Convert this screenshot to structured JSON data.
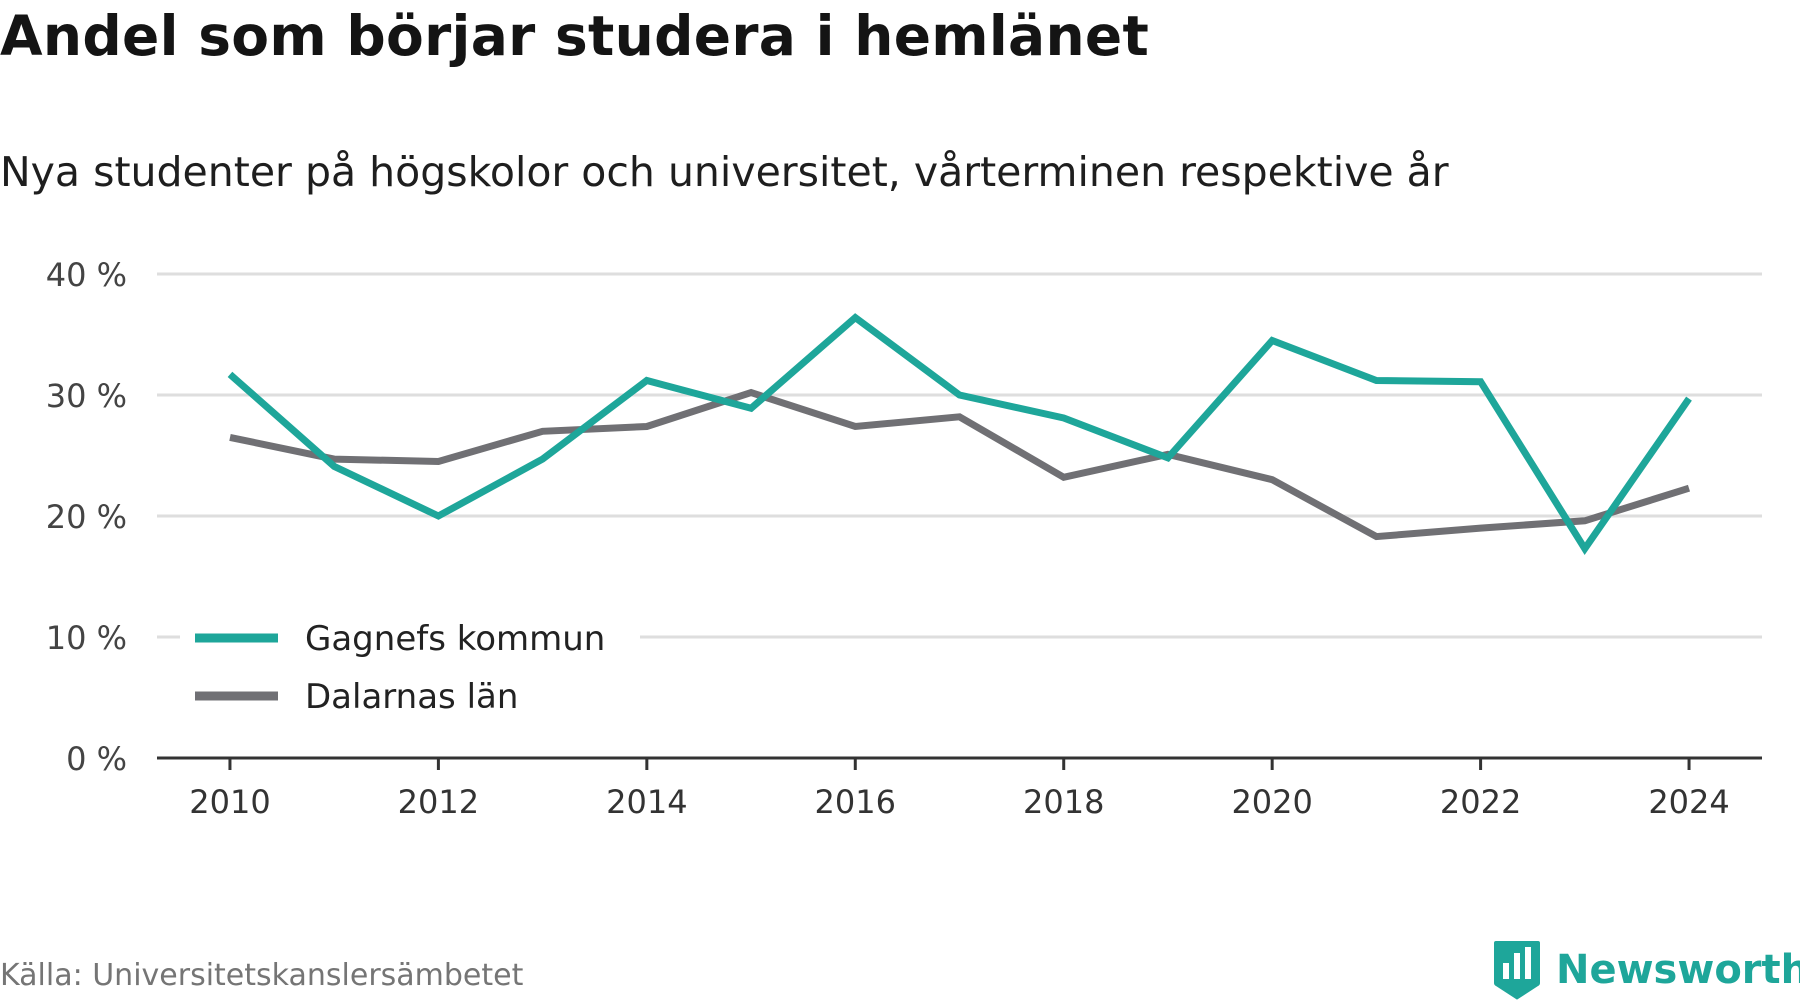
{
  "title": "Andel som börjar studera i hemlänet",
  "subtitle": "Nya studenter på högskolor och universitet, vårterminen respektive år",
  "source": "Källa: Universitetskanslersämbetet",
  "brand": {
    "name": "Newsworthy",
    "icon": "newsworthy-logo-icon",
    "color": "#1ea69a"
  },
  "chart_data": {
    "type": "line",
    "title": "Andel som börjar studera i hemlänet",
    "subtitle": "Nya studenter på högskolor och universitet, vårterminen respektive år",
    "xlabel": "",
    "ylabel": "",
    "x": [
      2010,
      2011,
      2012,
      2013,
      2014,
      2015,
      2016,
      2017,
      2018,
      2019,
      2020,
      2021,
      2022,
      2023,
      2024
    ],
    "xticks": [
      2010,
      2012,
      2014,
      2016,
      2018,
      2020,
      2022,
      2024
    ],
    "xticklabels": [
      "2010",
      "2012",
      "2014",
      "2016",
      "2018",
      "2020",
      "2022",
      "2024"
    ],
    "yticks": [
      0,
      10,
      20,
      30,
      40
    ],
    "yticklabels": [
      "0 %",
      "10 %",
      "20 %",
      "30 %",
      "40 %"
    ],
    "ylim": [
      0,
      40
    ],
    "xlim": [
      2009.3,
      2024.7
    ],
    "grid": true,
    "legend_position": "lower-left",
    "series": [
      {
        "name": "Gagnefs kommun",
        "color": "#1ea69a",
        "values": [
          31.7,
          24.1,
          20.0,
          24.7,
          31.2,
          28.9,
          36.4,
          30.0,
          28.1,
          24.8,
          34.5,
          31.2,
          31.1,
          17.3,
          29.7
        ]
      },
      {
        "name": "Dalarnas län",
        "color": "#707074",
        "values": [
          26.5,
          24.7,
          24.5,
          27.0,
          27.4,
          30.2,
          27.4,
          28.2,
          23.2,
          25.1,
          23.0,
          18.3,
          19.0,
          19.6,
          22.3
        ]
      }
    ]
  }
}
